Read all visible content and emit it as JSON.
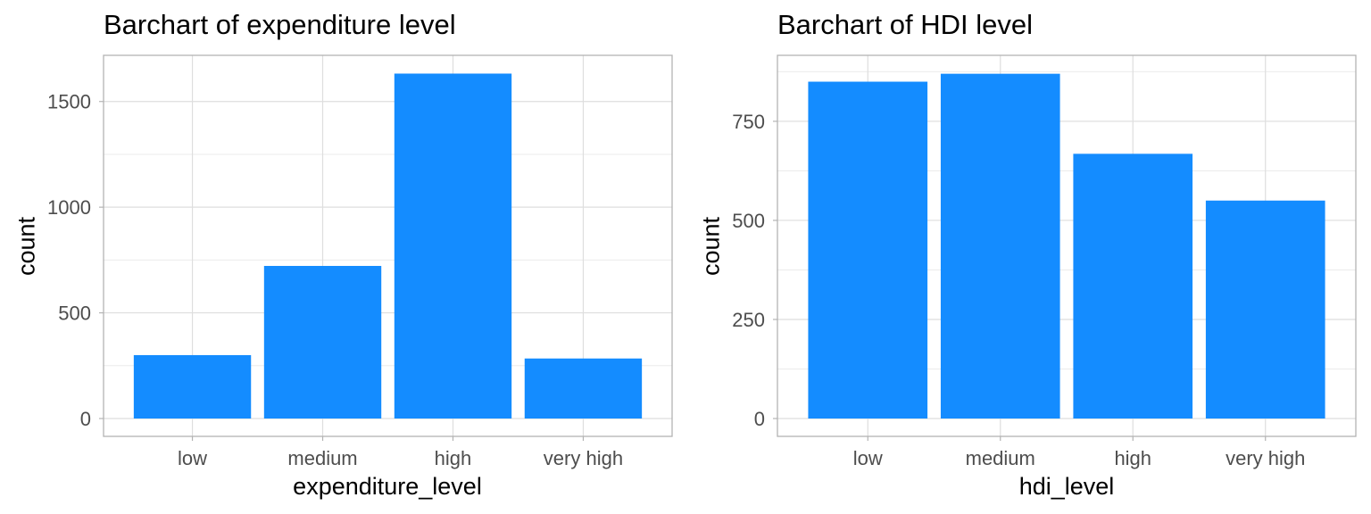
{
  "chart_data": [
    {
      "type": "bar",
      "title": "Barchart of expenditure level",
      "xlabel": "expenditure_level",
      "ylabel": "count",
      "categories": [
        "low",
        "medium",
        "high",
        "very high"
      ],
      "values": [
        300,
        722,
        1632,
        284
      ],
      "ylim": [
        0,
        1710
      ],
      "yticks": [
        0,
        500,
        1000,
        1500
      ],
      "minor_yticks": [
        250,
        750,
        1250
      ],
      "grid": true,
      "bar_color": "#148CFF"
    },
    {
      "type": "bar",
      "title": "Barchart of HDI level",
      "xlabel": "hdi_level",
      "ylabel": "count",
      "categories": [
        "low",
        "medium",
        "high",
        "very high"
      ],
      "values": [
        850,
        870,
        668,
        550
      ],
      "ylim": [
        0,
        912
      ],
      "yticks": [
        0,
        250,
        500,
        750
      ],
      "minor_yticks": [
        125,
        375,
        625,
        875
      ],
      "grid": true,
      "bar_color": "#148CFF"
    }
  ]
}
